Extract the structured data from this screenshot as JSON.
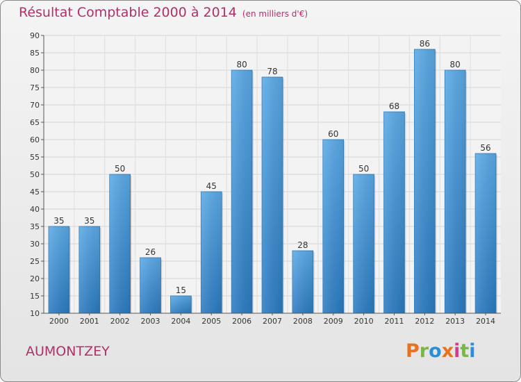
{
  "header": {
    "title": "Résultat Comptable 2000 à 2014",
    "subtitle": "(en milliers d'€)"
  },
  "chart_data": {
    "type": "bar",
    "title": "Résultat Comptable 2000 à 2014",
    "subtitle": "(en milliers d'€)",
    "xlabel": "",
    "ylabel": "",
    "categories": [
      "2000",
      "2001",
      "2002",
      "2003",
      "2004",
      "2005",
      "2006",
      "2007",
      "2008",
      "2009",
      "2010",
      "2011",
      "2012",
      "2013",
      "2014"
    ],
    "values": [
      35,
      35,
      50,
      26,
      15,
      45,
      80,
      78,
      28,
      60,
      50,
      68,
      86,
      80,
      56
    ],
    "ylim": [
      10,
      90
    ],
    "yticks": [
      10,
      15,
      20,
      25,
      30,
      35,
      40,
      45,
      50,
      55,
      60,
      65,
      70,
      75,
      80,
      85,
      90
    ],
    "grid": true,
    "bar_color": "#3a8fd8"
  },
  "footer": {
    "commune": "AUMONTZEY",
    "logo": "Proxiti",
    "logo_colors": [
      "#e8731c",
      "#7ab648",
      "#2a8fd6",
      "#e8731c",
      "#d93a8f",
      "#7ab648",
      "#2a8fd6"
    ]
  }
}
